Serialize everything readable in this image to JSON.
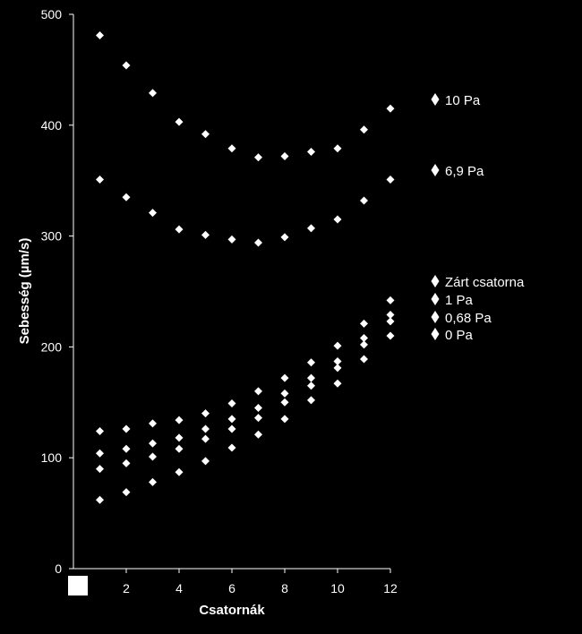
{
  "chart_data": {
    "type": "scatter",
    "xlabel": "Csatornák",
    "ylabel": "Sebesség (µm/s)",
    "xlim": [
      0,
      12
    ],
    "ylim": [
      0,
      500
    ],
    "x_ticks": [
      2,
      4,
      6,
      8,
      10,
      12
    ],
    "y_ticks": [
      0,
      100,
      200,
      300,
      400,
      500
    ],
    "grid": false,
    "marker": "diamond",
    "colors": {
      "background": "#000000",
      "marker": "#ffffff",
      "axis": "#ffffff",
      "corner_box": "#ffffff"
    },
    "x": [
      1,
      2,
      3,
      4,
      5,
      6,
      7,
      8,
      9,
      10,
      11,
      12
    ],
    "series": [
      {
        "name": "10 Pa",
        "values": [
          481,
          454,
          429,
          403,
          392,
          379,
          371,
          372,
          376,
          379,
          396,
          415
        ]
      },
      {
        "name": "6,9 Pa",
        "values": [
          351,
          335,
          321,
          306,
          301,
          297,
          294,
          299,
          307,
          315,
          332,
          351
        ]
      },
      {
        "name": "Zárt csatorna",
        "values": [
          124,
          126,
          131,
          134,
          140,
          149,
          160,
          172,
          186,
          201,
          221,
          242
        ]
      },
      {
        "name": "1 Pa",
        "values": [
          104,
          108,
          113,
          118,
          126,
          135,
          145,
          158,
          172,
          187,
          208,
          229
        ]
      },
      {
        "name": "0,68 Pa",
        "values": [
          90,
          95,
          101,
          108,
          117,
          126,
          136,
          150,
          165,
          181,
          202,
          223
        ]
      },
      {
        "name": "0 Pa",
        "values": [
          62,
          69,
          78,
          87,
          97,
          109,
          121,
          135,
          152,
          167,
          189,
          210
        ]
      }
    ],
    "legend": [
      {
        "series": "10 Pa",
        "label": "10 Pa",
        "placement": "right, beside upper series"
      },
      {
        "series": "6,9 Pa",
        "label": "6,9 Pa",
        "placement": "right, beside second series"
      },
      {
        "series": "Zárt csatorna",
        "label": "Zárt csatorna",
        "placement": "right"
      },
      {
        "series": "1 Pa",
        "label": "1 Pa",
        "placement": "right"
      },
      {
        "series": "0,68 Pa",
        "label": "0,68 Pa",
        "placement": "right"
      },
      {
        "series": "0 Pa",
        "label": "0 Pa",
        "placement": "right"
      }
    ]
  }
}
